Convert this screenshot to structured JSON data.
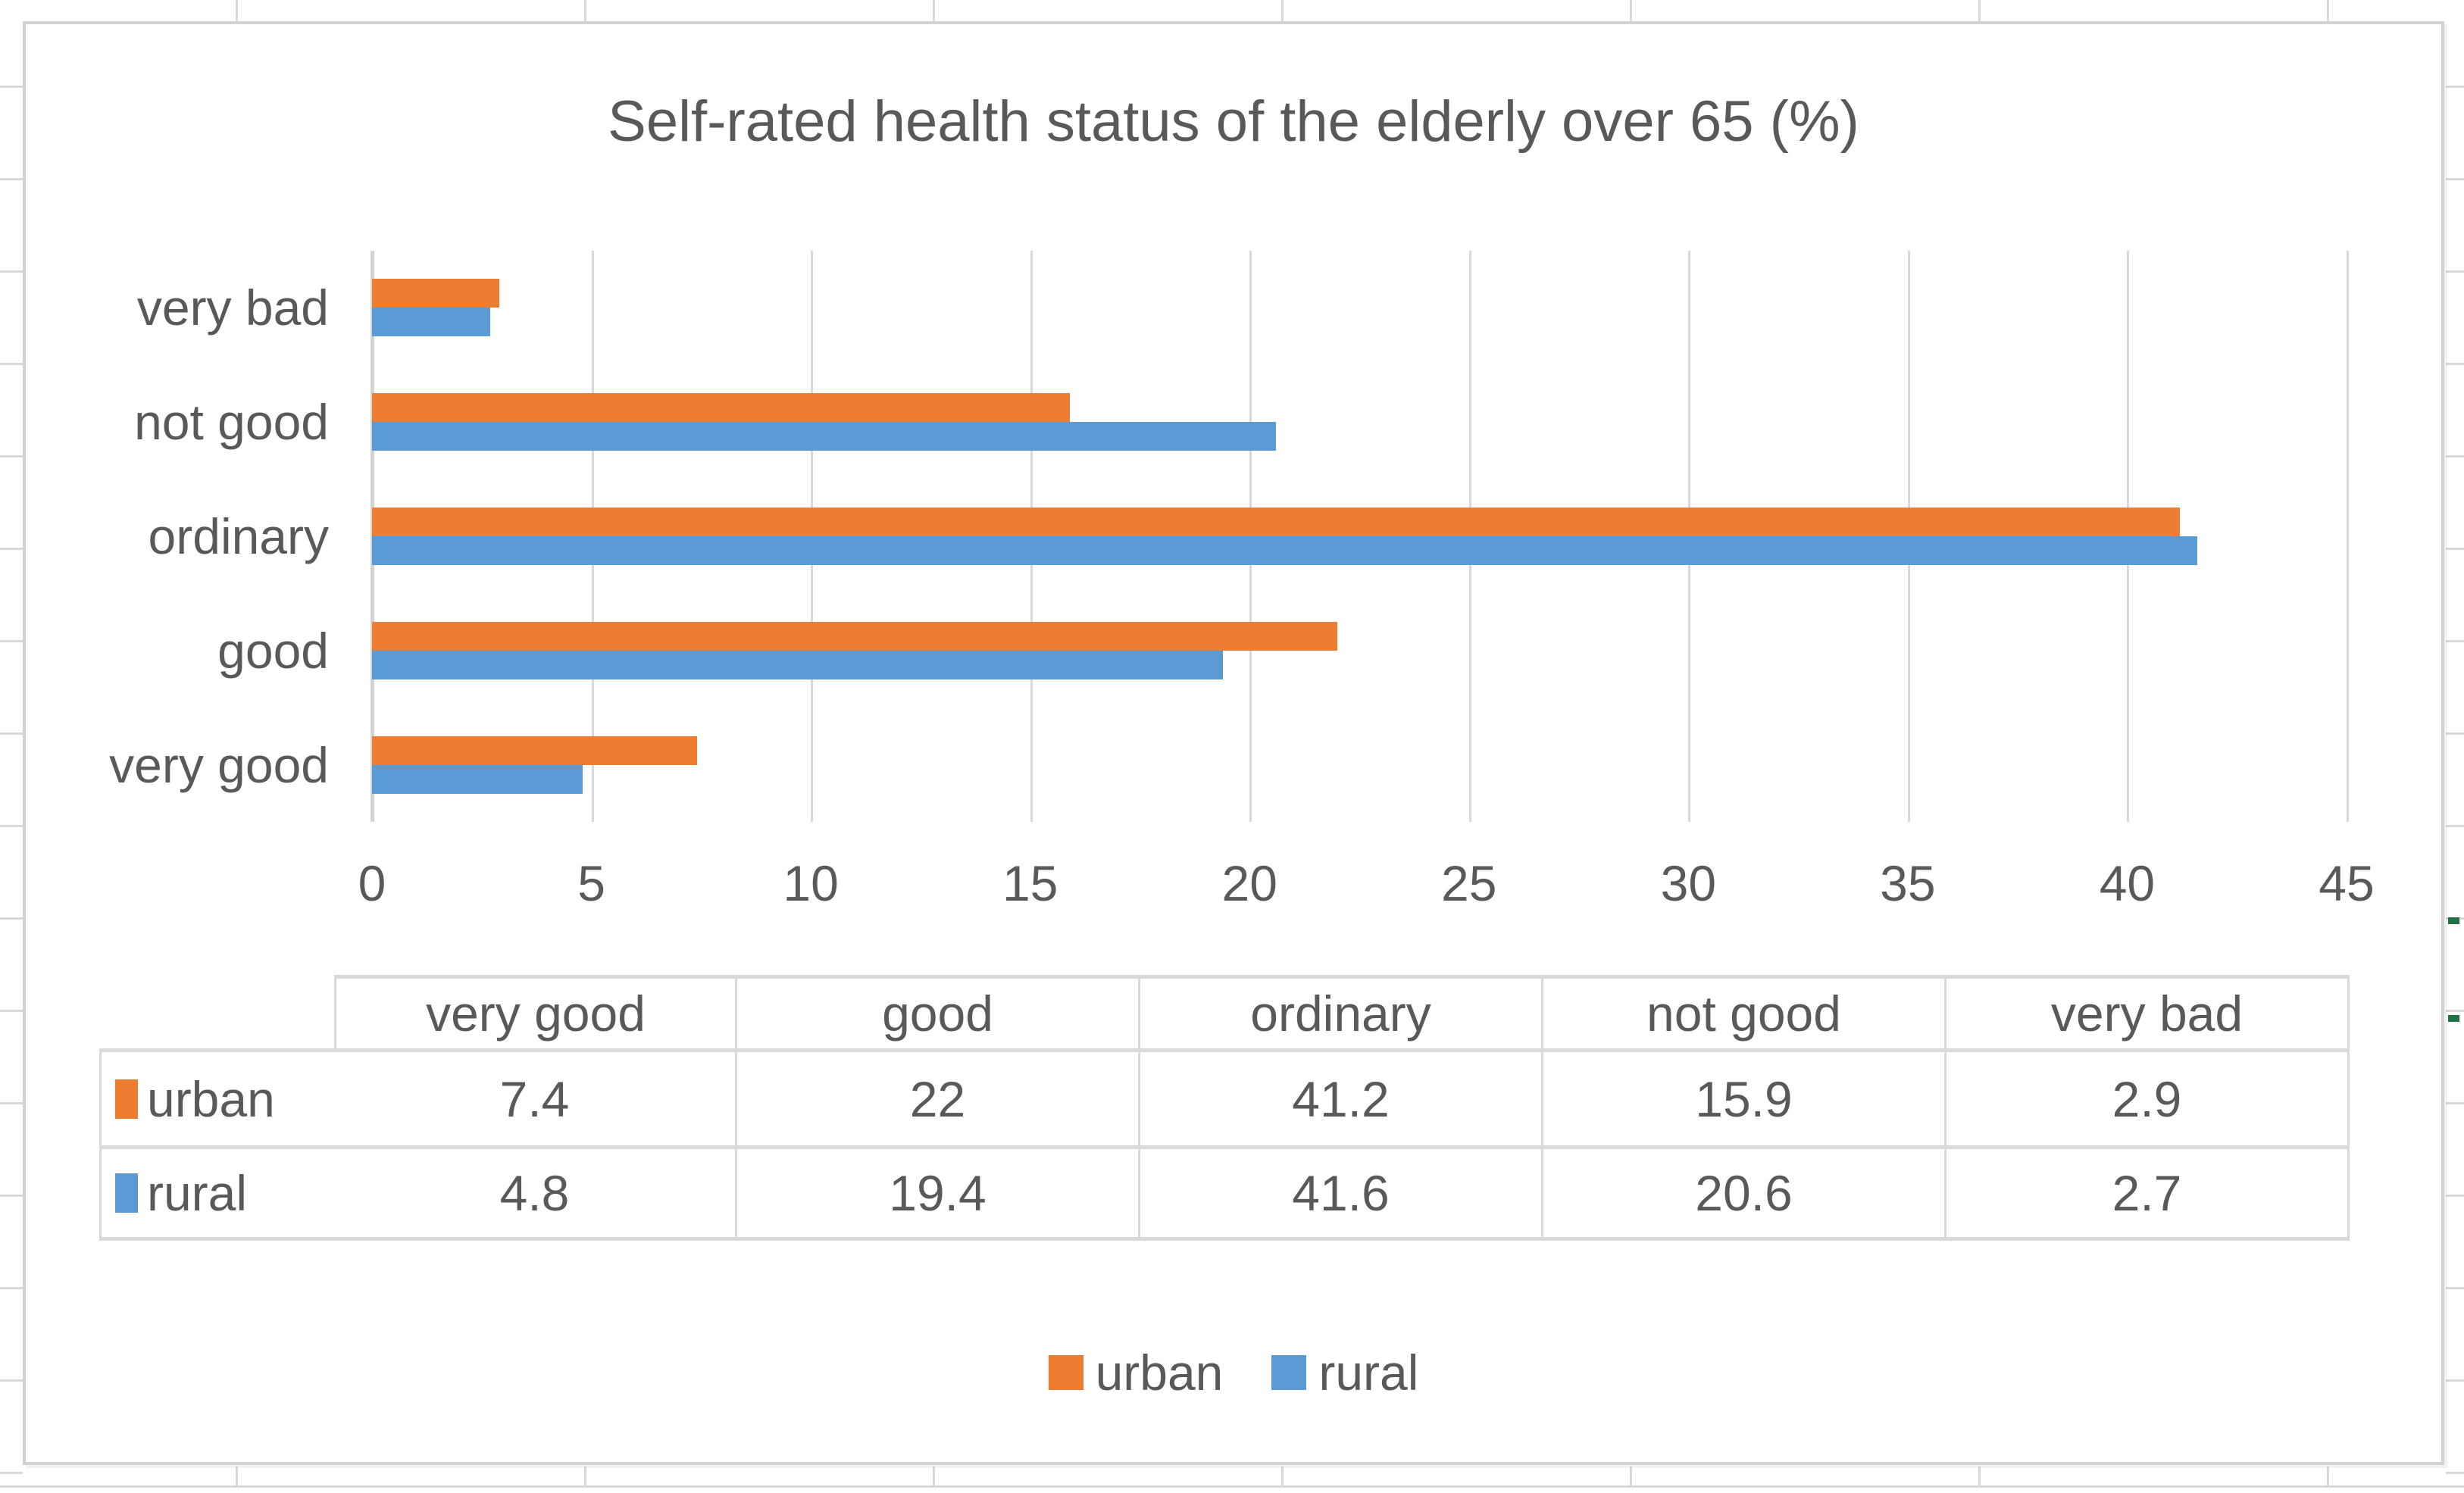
{
  "chart_data": {
    "type": "bar",
    "orientation": "horizontal",
    "title": "Self-rated health status of the elderly over 65 (%)",
    "categories": [
      "very good",
      "good",
      "ordinary",
      "not good",
      "very bad"
    ],
    "category_axis_order": "reversed: displayed top-to-bottom as very bad, not good, ordinary, good, very good",
    "series": [
      {
        "name": "urban",
        "color": "#ED7D31",
        "values": [
          7.4,
          22,
          41.2,
          15.9,
          2.9
        ]
      },
      {
        "name": "rural",
        "color": "#5B9BD5",
        "values": [
          4.8,
          19.4,
          41.6,
          20.6,
          2.7
        ]
      }
    ],
    "xlim": [
      0,
      45
    ],
    "x_ticks": [
      0,
      5,
      10,
      15,
      20,
      25,
      30,
      35,
      40,
      45
    ],
    "grid": true,
    "legend_position": "bottom",
    "data_table_shown": true
  },
  "styles": {
    "text_color": "#595959",
    "gridline_color": "#D9D9D9",
    "urban_color": "#ED7D31",
    "rural_color": "#5B9BD5",
    "worksheet_accent_green": "#217346"
  }
}
